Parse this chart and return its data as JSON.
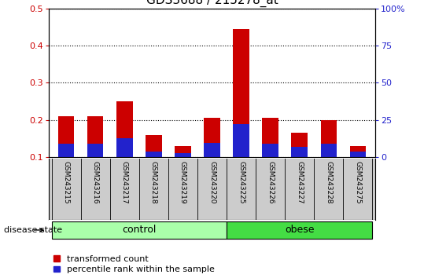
{
  "title": "GDS3688 / 215278_at",
  "samples": [
    "GSM243215",
    "GSM243216",
    "GSM243217",
    "GSM243218",
    "GSM243219",
    "GSM243220",
    "GSM243225",
    "GSM243226",
    "GSM243227",
    "GSM243228",
    "GSM243275"
  ],
  "transformed_count": [
    0.21,
    0.21,
    0.25,
    0.16,
    0.13,
    0.205,
    0.445,
    0.205,
    0.165,
    0.2,
    0.13
  ],
  "percentile_rank": [
    0.135,
    0.135,
    0.15,
    0.115,
    0.11,
    0.138,
    0.188,
    0.135,
    0.128,
    0.135,
    0.115
  ],
  "bar_bottom": 0.1,
  "red_color": "#cc0000",
  "blue_color": "#2222cc",
  "ylim_left": [
    0.1,
    0.5
  ],
  "ylim_right": [
    0,
    100
  ],
  "yticks_left": [
    0.1,
    0.2,
    0.3,
    0.4,
    0.5
  ],
  "yticks_right": [
    0,
    25,
    50,
    75,
    100
  ],
  "ytick_labels_right": [
    "0",
    "25",
    "50",
    "75",
    "100%"
  ],
  "groups": [
    {
      "label": "control",
      "start": 0,
      "end": 6,
      "color": "#aaffaa"
    },
    {
      "label": "obese",
      "start": 6,
      "end": 11,
      "color": "#44dd44"
    }
  ],
  "disease_state_label": "disease state",
  "legend_labels": [
    "transformed count",
    "percentile rank within the sample"
  ],
  "bg_color": "#ffffff",
  "plot_bg_color": "#ffffff",
  "tick_label_area_color": "#cccccc",
  "grid_color": "#000000",
  "title_fontsize": 11,
  "tick_fontsize": 8,
  "axis_label_fontsize": 8,
  "group_label_fontsize": 9,
  "legend_fontsize": 8
}
